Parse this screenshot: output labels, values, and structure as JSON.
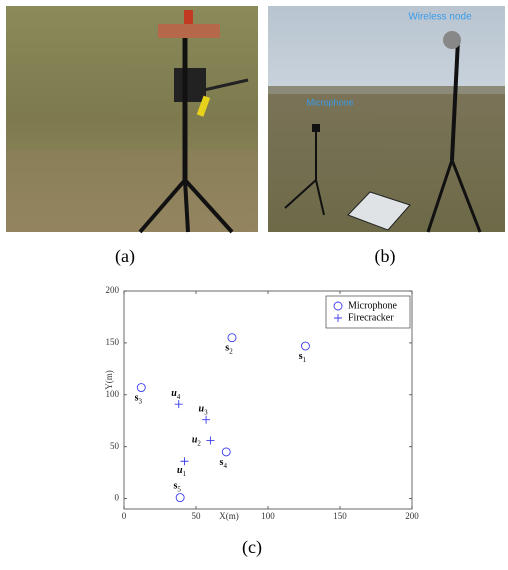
{
  "photos": [
    {
      "caption": "(a)"
    },
    {
      "caption": "(b)",
      "annotations": [
        "Wireless node",
        "Microphone"
      ]
    }
  ],
  "chart_data": {
    "type": "scatter",
    "caption": "(c)",
    "xlabel": "X(m)",
    "ylabel": "Y(m)",
    "xlim": [
      0,
      200
    ],
    "ylim": [
      -10,
      200
    ],
    "xticks": [
      0,
      50,
      100,
      150,
      200
    ],
    "yticks": [
      0,
      50,
      100,
      150,
      200
    ],
    "legend": "upper right",
    "series": [
      {
        "name": "Microphone",
        "color": "#3a3af0",
        "marker": "circle",
        "x": [
          126,
          75,
          12,
          71,
          39
        ],
        "y": [
          147,
          155,
          107,
          45,
          1
        ],
        "labels": [
          {
            "text": "s",
            "sub": "1"
          },
          {
            "text": "s",
            "sub": "2"
          },
          {
            "text": "s",
            "sub": "3"
          },
          {
            "text": "s",
            "sub": "4"
          },
          {
            "text": "s",
            "sub": "5"
          }
        ]
      },
      {
        "name": "Firecracker",
        "color": "#3a3af0",
        "marker": "plus",
        "x": [
          42,
          60,
          57,
          38
        ],
        "y": [
          36,
          56,
          76,
          91
        ],
        "labels": [
          {
            "text": "u",
            "sub": "1"
          },
          {
            "text": "u",
            "sub": "2"
          },
          {
            "text": "u",
            "sub": "3"
          },
          {
            "text": "u",
            "sub": "4"
          }
        ]
      }
    ]
  }
}
